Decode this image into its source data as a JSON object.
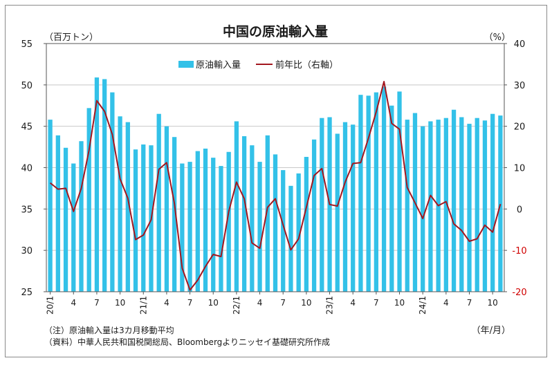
{
  "chart_data": {
    "type": "bar",
    "title": "中国の原油輸入量",
    "left_unit": "（百万トン）",
    "right_unit": "（%）",
    "x_unit": "（年/月）",
    "legend": {
      "position": "top-center",
      "bar_label": "原油輸入量",
      "line_label": "前年比（右軸）"
    },
    "y_left": {
      "min": 25,
      "max": 55,
      "ticks": [
        25,
        30,
        35,
        40,
        45,
        50,
        55
      ]
    },
    "y_right": {
      "min": -20,
      "max": 40,
      "ticks": [
        -20,
        -10,
        0,
        10,
        20,
        30,
        40
      ]
    },
    "x_ticks": [
      {
        "index": 0,
        "label": "20/1",
        "rotated": true
      },
      {
        "index": 3,
        "label": "4"
      },
      {
        "index": 6,
        "label": "7"
      },
      {
        "index": 9,
        "label": "10"
      },
      {
        "index": 12,
        "label": "21/1",
        "rotated": true
      },
      {
        "index": 15,
        "label": "4"
      },
      {
        "index": 18,
        "label": "7"
      },
      {
        "index": 21,
        "label": "10"
      },
      {
        "index": 24,
        "label": "22/1",
        "rotated": true
      },
      {
        "index": 27,
        "label": "4"
      },
      {
        "index": 30,
        "label": "7"
      },
      {
        "index": 33,
        "label": "10"
      },
      {
        "index": 36,
        "label": "23/1",
        "rotated": true
      },
      {
        "index": 39,
        "label": "4"
      },
      {
        "index": 42,
        "label": "7"
      },
      {
        "index": 45,
        "label": "10"
      },
      {
        "index": 48,
        "label": "24/1",
        "rotated": true
      },
      {
        "index": 51,
        "label": "4"
      },
      {
        "index": 54,
        "label": "7"
      },
      {
        "index": 57,
        "label": "10"
      }
    ],
    "x": [
      "2020/1",
      "2020/2",
      "2020/3",
      "2020/4",
      "2020/5",
      "2020/6",
      "2020/7",
      "2020/8",
      "2020/9",
      "2020/10",
      "2020/11",
      "2020/12",
      "2021/1",
      "2021/2",
      "2021/3",
      "2021/4",
      "2021/5",
      "2021/6",
      "2021/7",
      "2021/8",
      "2021/9",
      "2021/10",
      "2021/11",
      "2021/12",
      "2022/1",
      "2022/2",
      "2022/3",
      "2022/4",
      "2022/5",
      "2022/6",
      "2022/7",
      "2022/8",
      "2022/9",
      "2022/10",
      "2022/11",
      "2022/12",
      "2023/1",
      "2023/2",
      "2023/3",
      "2023/4",
      "2023/5",
      "2023/6",
      "2023/7",
      "2023/8",
      "2023/9",
      "2023/10",
      "2023/11",
      "2023/12",
      "2024/1",
      "2024/2",
      "2024/3",
      "2024/4",
      "2024/5",
      "2024/6",
      "2024/7",
      "2024/8",
      "2024/9",
      "2024/10",
      "2024/11"
    ],
    "series": [
      {
        "name": "原油輸入量",
        "kind": "bar",
        "axis": "left",
        "color": "#33c1e8",
        "values": [
          45.8,
          43.9,
          42.4,
          40.5,
          43.2,
          47.2,
          50.9,
          50.7,
          49.1,
          46.2,
          45.5,
          42.2,
          42.8,
          42.7,
          46.5,
          45.0,
          43.7,
          40.5,
          40.7,
          42.0,
          42.3,
          41.2,
          40.2,
          41.9,
          45.6,
          43.8,
          42.7,
          40.7,
          43.9,
          41.6,
          39.7,
          37.8,
          39.3,
          41.3,
          43.4,
          46.0,
          46.1,
          44.1,
          45.5,
          45.2,
          48.8,
          48.7,
          49.1,
          49.8,
          47.5,
          49.2,
          45.8,
          46.6,
          45.0,
          45.6,
          45.8,
          46.0,
          47.0,
          46.1,
          45.3,
          46.0,
          45.7,
          46.5,
          46.3
        ]
      },
      {
        "name": "前年比（右軸）",
        "kind": "line",
        "axis": "right",
        "color": "#a3161e",
        "values": [
          6.3,
          4.8,
          5.0,
          -0.6,
          5.0,
          14.2,
          26.2,
          23.6,
          18.0,
          7.3,
          2.6,
          -7.4,
          -6.3,
          -2.6,
          9.6,
          11.2,
          1.4,
          -14.3,
          -19.6,
          -17.2,
          -13.9,
          -11.0,
          -11.5,
          -0.6,
          6.5,
          2.5,
          -8.2,
          -9.5,
          0.4,
          2.5,
          -3.8,
          -9.9,
          -7.2,
          0.4,
          8.1,
          9.8,
          1.1,
          0.7,
          6.5,
          11.0,
          11.2,
          17.1,
          23.5,
          30.8,
          20.7,
          19.3,
          5.2,
          1.5,
          -2.3,
          3.3,
          0.8,
          1.8,
          -3.6,
          -5.2,
          -7.8,
          -7.2,
          -3.9,
          -5.6,
          1.2
        ]
      }
    ],
    "notes": [
      "（注）原油輸入量は3カ月移動平均",
      "（資料）中華人民共和国税関総局、Bloombergよりニッセイ基礎研究所作成"
    ]
  }
}
